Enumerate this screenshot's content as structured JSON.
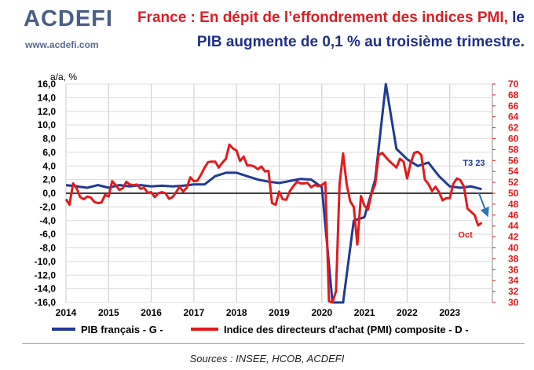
{
  "logo": {
    "word": "ACDEFI",
    "url": "www.acdefi.com"
  },
  "title": {
    "line1_main": "France : En dépit de l’effondrement des indices PMI,",
    "line1_tail": " le",
    "line2": "PIB augmente de 0,1 % au troisième trimestre."
  },
  "sources": "Sources : INSEE, HCOB, ACDEFI",
  "colors": {
    "gdp": "#1f3a93",
    "pmi": "#e31a1c",
    "arrow": "#2e75b6"
  },
  "chart_data": {
    "type": "line",
    "left_axis_label": "a/a, %",
    "x_ticks": [
      "2014",
      "2015",
      "2016",
      "2017",
      "2018",
      "2019",
      "2020",
      "2021",
      "2022",
      "2023"
    ],
    "ylim_left": [
      -16,
      16
    ],
    "ylim_right": [
      30,
      70
    ],
    "left_ticks": [
      "16,0",
      "14,0",
      "12,0",
      "10,0",
      "8,0",
      "6,0",
      "4,0",
      "2,0",
      "0,0",
      "-2,0",
      "-4,0",
      "-6,0",
      "-8,0",
      "-10,0",
      "-12,0",
      "-14,0",
      "-16,0"
    ],
    "right_ticks": [
      "70",
      "68",
      "66",
      "64",
      "62",
      "60",
      "58",
      "56",
      "54",
      "52",
      "50",
      "48",
      "46",
      "44",
      "42",
      "40",
      "38",
      "36",
      "34",
      "32",
      "30"
    ],
    "annotations": {
      "gdp_last": "T3 23",
      "pmi_last": "Oct"
    },
    "series": [
      {
        "name": "PIB français - G -",
        "axis": "left",
        "x": [
          2014.0,
          2014.25,
          2014.5,
          2014.75,
          2015.0,
          2015.25,
          2015.5,
          2015.75,
          2016.0,
          2016.25,
          2016.5,
          2016.75,
          2017.0,
          2017.25,
          2017.5,
          2017.75,
          2018.0,
          2018.25,
          2018.5,
          2018.75,
          2019.0,
          2019.25,
          2019.5,
          2019.75,
          2020.0,
          2020.25,
          2020.5,
          2020.75,
          2021.0,
          2021.25,
          2021.5,
          2021.75,
          2022.0,
          2022.25,
          2022.5,
          2022.75,
          2023.0,
          2023.25,
          2023.5,
          2023.75
        ],
        "values": [
          1.2,
          1.0,
          0.8,
          1.2,
          0.8,
          1.2,
          1.0,
          1.2,
          1.0,
          1.1,
          1.0,
          1.1,
          1.3,
          1.3,
          2.5,
          3.0,
          3.0,
          2.5,
          2.0,
          1.7,
          1.5,
          1.8,
          2.1,
          2.0,
          0.9,
          -18.0,
          -18.0,
          -4.0,
          -3.5,
          2.0,
          19.5,
          6.5,
          5.0,
          4.0,
          4.5,
          2.5,
          1.0,
          0.8,
          1.0,
          0.6
        ]
      },
      {
        "name": "Indice des directeurs d'achat (PMI) composite - D -",
        "axis": "right",
        "x": [
          2014.0,
          2014.083,
          2014.167,
          2014.25,
          2014.333,
          2014.417,
          2014.5,
          2014.583,
          2014.667,
          2014.75,
          2014.833,
          2014.917,
          2015.0,
          2015.083,
          2015.167,
          2015.25,
          2015.333,
          2015.417,
          2015.5,
          2015.583,
          2015.667,
          2015.75,
          2015.833,
          2015.917,
          2016.0,
          2016.083,
          2016.167,
          2016.25,
          2016.333,
          2016.417,
          2016.5,
          2016.583,
          2016.667,
          2016.75,
          2016.833,
          2016.917,
          2017.0,
          2017.083,
          2017.167,
          2017.25,
          2017.333,
          2017.417,
          2017.5,
          2017.583,
          2017.667,
          2017.75,
          2017.833,
          2017.917,
          2018.0,
          2018.083,
          2018.167,
          2018.25,
          2018.333,
          2018.417,
          2018.5,
          2018.583,
          2018.667,
          2018.75,
          2018.833,
          2018.917,
          2019.0,
          2019.083,
          2019.167,
          2019.25,
          2019.333,
          2019.417,
          2019.5,
          2019.583,
          2019.667,
          2019.75,
          2019.833,
          2019.917,
          2020.0,
          2020.083,
          2020.167,
          2020.25,
          2020.333,
          2020.417,
          2020.5,
          2020.583,
          2020.667,
          2020.75,
          2020.833,
          2020.917,
          2021.0,
          2021.083,
          2021.167,
          2021.25,
          2021.333,
          2021.417,
          2021.5,
          2021.583,
          2021.667,
          2021.75,
          2021.833,
          2021.917,
          2022.0,
          2022.083,
          2022.167,
          2022.25,
          2022.333,
          2022.417,
          2022.5,
          2022.583,
          2022.667,
          2022.75,
          2022.833,
          2022.917,
          2023.0,
          2023.083,
          2023.167,
          2023.25,
          2023.333,
          2023.417,
          2023.5,
          2023.583,
          2023.667,
          2023.75
        ],
        "values": [
          48.9,
          47.9,
          51.8,
          50.9,
          49.3,
          48.9,
          49.4,
          49.2,
          48.4,
          48.2,
          48.3,
          49.7,
          49.4,
          52.2,
          51.5,
          50.6,
          50.9,
          52.1,
          51.6,
          51.5,
          51.6,
          50.8,
          51.0,
          50.1,
          50.2,
          49.3,
          50.0,
          50.2,
          50.0,
          49.0,
          49.3,
          50.2,
          51.2,
          50.3,
          51.0,
          52.9,
          52.2,
          52.3,
          53.4,
          54.7,
          55.7,
          55.8,
          55.8,
          54.7,
          55.6,
          56.3,
          58.9,
          58.2,
          57.8,
          55.9,
          56.7,
          55.1,
          55.1,
          54.9,
          54.4,
          54.9,
          54.0,
          54.1,
          48.2,
          47.9,
          50.3,
          48.9,
          48.8,
          50.4,
          51.3,
          52.1,
          51.8,
          51.8,
          51.9,
          51.1,
          51.5,
          51.3,
          51.5,
          52.0,
          30.2,
          11.1,
          32.1,
          51.7,
          57.3,
          51.6,
          48.5,
          47.5,
          40.6,
          49.5,
          47.7,
          47.0,
          50.0,
          51.6,
          57.0,
          57.4,
          56.6,
          55.9,
          55.3,
          54.7,
          56.3,
          55.8,
          52.7,
          55.5,
          57.4,
          57.6,
          57.0,
          52.5,
          51.7,
          50.4,
          51.2,
          50.2,
          48.7,
          49.1,
          49.1,
          51.7,
          52.7,
          52.4,
          51.2,
          47.2,
          46.6,
          46.0,
          44.1,
          44.6
        ]
      }
    ]
  }
}
